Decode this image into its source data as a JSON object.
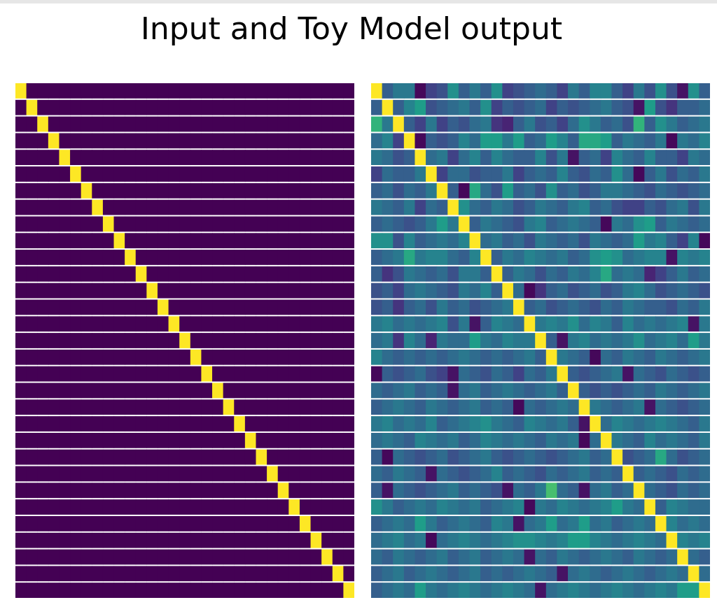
{
  "figure": {
    "title": "Input and Toy Model output"
  },
  "chart_data": [
    {
      "type": "heatmap",
      "title": "",
      "colormap": "viridis",
      "value_range": [
        0,
        1
      ],
      "rows": 31,
      "cols": 31,
      "description_of_values": "identity matrix: 1 on the diagonal, 0 elsewhere",
      "diagonal_value": 1,
      "off_diagonal_value": 0
    },
    {
      "type": "heatmap",
      "title": "",
      "colormap": "viridis",
      "value_range": [
        0,
        1
      ],
      "rows": 31,
      "cols": 31,
      "diagonal_value": 1,
      "off_diagonal_values": [
        [
          0.2,
          0.3,
          0.4,
          0.4,
          0.02,
          0.2,
          0.25,
          0.5,
          0.3,
          0.4,
          0.3,
          0.5,
          0.2,
          0.25,
          0.3,
          0.35,
          0.3,
          0.2,
          0.4,
          0.3,
          0.45,
          0.45,
          0.3,
          0.2,
          0.4,
          0.25,
          0.5,
          0.25,
          0.05,
          0.5,
          0.3
        ],
        [
          0.3,
          0.2,
          0.3,
          0.45,
          0.55,
          0.25,
          0.3,
          0.35,
          0.4,
          0.3,
          0.5,
          0.2,
          0.3,
          0.25,
          0.3,
          0.35,
          0.2,
          0.3,
          0.25,
          0.3,
          0.35,
          0.4,
          0.3,
          0.25,
          0.05,
          0.55,
          0.25,
          0.15,
          0.3,
          0.3,
          0.35
        ],
        [
          0.65,
          0.4,
          0.35,
          0.3,
          0.2,
          0.4,
          0.2,
          0.3,
          0.25,
          0.35,
          0.4,
          0.15,
          0.1,
          0.3,
          0.4,
          0.25,
          0.3,
          0.2,
          0.35,
          0.5,
          0.4,
          0.3,
          0.35,
          0.25,
          0.65,
          0.3,
          0.5,
          0.4,
          0.3,
          0.35,
          0.4
        ],
        [
          0.35,
          0.45,
          0.2,
          0.4,
          0.02,
          0.3,
          0.25,
          0.3,
          0.45,
          0.35,
          0.55,
          0.55,
          0.4,
          0.55,
          0.3,
          0.35,
          0.55,
          0.45,
          0.3,
          0.6,
          0.6,
          0.55,
          0.3,
          0.4,
          0.35,
          0.3,
          0.4,
          0.02,
          0.4,
          0.35,
          0.45
        ],
        [
          0.4,
          0.35,
          0.25,
          0.3,
          0.25,
          0.35,
          0.4,
          0.2,
          0.35,
          0.45,
          0.3,
          0.45,
          0.35,
          0.3,
          0.3,
          0.45,
          0.25,
          0.4,
          0.05,
          0.3,
          0.35,
          0.2,
          0.45,
          0.35,
          0.3,
          0.45,
          0.3,
          0.3,
          0.2,
          0.4,
          0.35
        ],
        [
          0.2,
          0.35,
          0.3,
          0.3,
          0.4,
          0.45,
          0.2,
          0.35,
          0.35,
          0.25,
          0.3,
          0.3,
          0.4,
          0.2,
          0.3,
          0.35,
          0.3,
          0.45,
          0.3,
          0.25,
          0.35,
          0.3,
          0.5,
          0.35,
          0.02,
          0.3,
          0.4,
          0.25,
          0.35,
          0.3,
          0.4
        ],
        [
          0.3,
          0.35,
          0.25,
          0.35,
          0.3,
          0.4,
          0.2,
          0.3,
          0.02,
          0.6,
          0.35,
          0.25,
          0.55,
          0.3,
          0.35,
          0.25,
          0.5,
          0.3,
          0.35,
          0.25,
          0.3,
          0.4,
          0.4,
          0.35,
          0.3,
          0.25,
          0.35,
          0.3,
          0.25,
          0.3,
          0.35
        ],
        [
          0.4,
          0.35,
          0.3,
          0.4,
          0.2,
          0.35,
          0.3,
          0.02,
          0.5,
          0.35,
          0.3,
          0.4,
          0.35,
          0.25,
          0.3,
          0.4,
          0.35,
          0.3,
          0.4,
          0.45,
          0.3,
          0.35,
          0.25,
          0.2,
          0.2,
          0.3,
          0.25,
          0.35,
          0.4,
          0.25,
          0.4
        ],
        [
          0.3,
          0.35,
          0.3,
          0.25,
          0.3,
          0.4,
          0.55,
          0.4,
          0.35,
          0.3,
          0.4,
          0.35,
          0.3,
          0.25,
          0.4,
          0.45,
          0.3,
          0.35,
          0.4,
          0.35,
          0.3,
          0.02,
          0.4,
          0.35,
          0.5,
          0.55,
          0.3,
          0.4,
          0.35,
          0.3,
          0.35
        ],
        [
          0.5,
          0.5,
          0.25,
          0.45,
          0.3,
          0.35,
          0.4,
          0.35,
          0.45,
          0.3,
          0.35,
          0.4,
          0.3,
          0.35,
          0.25,
          0.4,
          0.35,
          0.3,
          0.35,
          0.25,
          0.4,
          0.35,
          0.3,
          0.35,
          0.55,
          0.4,
          0.45,
          0.3,
          0.2,
          0.45,
          0.02
        ],
        [
          0.3,
          0.35,
          0.4,
          0.6,
          0.4,
          0.45,
          0.45,
          0.35,
          0.3,
          0.45,
          0.4,
          0.3,
          0.4,
          0.35,
          0.45,
          0.4,
          0.35,
          0.4,
          0.3,
          0.35,
          0.5,
          0.55,
          0.5,
          0.35,
          0.4,
          0.45,
          0.45,
          0.05,
          0.45,
          0.4,
          0.45
        ],
        [
          0.3,
          0.15,
          0.25,
          0.4,
          0.35,
          0.3,
          0.35,
          0.25,
          0.4,
          0.4,
          0.3,
          0.35,
          0.3,
          0.4,
          0.35,
          0.25,
          0.35,
          0.3,
          0.4,
          0.35,
          0.45,
          0.6,
          0.35,
          0.4,
          0.35,
          0.1,
          0.2,
          0.3,
          0.4,
          0.3,
          0.35
        ],
        [
          0.25,
          0.3,
          0.2,
          0.35,
          0.4,
          0.35,
          0.3,
          0.25,
          0.4,
          0.35,
          0.45,
          0.3,
          0.35,
          0.35,
          0.02,
          0.15,
          0.3,
          0.35,
          0.25,
          0.3,
          0.35,
          0.25,
          0.3,
          0.4,
          0.45,
          0.35,
          0.25,
          0.3,
          0.35,
          0.3,
          0.25
        ],
        [
          0.25,
          0.3,
          0.15,
          0.3,
          0.35,
          0.25,
          0.4,
          0.3,
          0.35,
          0.25,
          0.3,
          0.35,
          0.4,
          0.2,
          0.3,
          0.35,
          0.25,
          0.3,
          0.35,
          0.3,
          0.25,
          0.35,
          0.3,
          0.4,
          0.35,
          0.3,
          0.3,
          0.25,
          0.35,
          0.3,
          0.4
        ],
        [
          0.4,
          0.45,
          0.35,
          0.4,
          0.35,
          0.4,
          0.45,
          0.25,
          0.4,
          0.05,
          0.3,
          0.45,
          0.4,
          0.35,
          0.35,
          0.4,
          0.45,
          0.4,
          0.5,
          0.35,
          0.45,
          0.4,
          0.3,
          0.45,
          0.35,
          0.4,
          0.35,
          0.4,
          0.45,
          0.05,
          0.4
        ],
        [
          0.35,
          0.4,
          0.15,
          0.45,
          0.35,
          0.1,
          0.4,
          0.35,
          0.35,
          0.55,
          0.4,
          0.35,
          0.45,
          0.4,
          0.4,
          0.5,
          0.3,
          0.05,
          0.4,
          0.45,
          0.35,
          0.4,
          0.35,
          0.4,
          0.5,
          0.35,
          0.4,
          0.45,
          0.35,
          0.55,
          0.4
        ],
        [
          0.45,
          0.35,
          0.3,
          0.35,
          0.3,
          0.35,
          0.3,
          0.35,
          0.4,
          0.35,
          0.3,
          0.35,
          0.3,
          0.35,
          0.4,
          0.3,
          0.35,
          0.4,
          0.35,
          0.3,
          0.02,
          0.35,
          0.3,
          0.4,
          0.35,
          0.3,
          0.4,
          0.35,
          0.3,
          0.35,
          0.4
        ],
        [
          0.02,
          0.3,
          0.25,
          0.3,
          0.35,
          0.25,
          0.2,
          0.05,
          0.35,
          0.3,
          0.25,
          0.35,
          0.3,
          0.2,
          0.35,
          0.3,
          0.4,
          0.35,
          0.3,
          0.25,
          0.3,
          0.35,
          0.4,
          0.05,
          0.35,
          0.3,
          0.25,
          0.35,
          0.3,
          0.25,
          0.3
        ],
        [
          0.35,
          0.3,
          0.35,
          0.4,
          0.3,
          0.35,
          0.3,
          0.05,
          0.35,
          0.4,
          0.3,
          0.35,
          0.4,
          0.35,
          0.3,
          0.35,
          0.4,
          0.3,
          0.35,
          0.3,
          0.25,
          0.3,
          0.25,
          0.3,
          0.35,
          0.3,
          0.4,
          0.35,
          0.3,
          0.35,
          0.4
        ],
        [
          0.3,
          0.35,
          0.4,
          0.35,
          0.3,
          0.4,
          0.35,
          0.3,
          0.35,
          0.4,
          0.3,
          0.35,
          0.3,
          0.02,
          0.35,
          0.3,
          0.35,
          0.4,
          0.35,
          0.3,
          0.4,
          0.35,
          0.3,
          0.35,
          0.4,
          0.05,
          0.35,
          0.3,
          0.25,
          0.3,
          0.35
        ],
        [
          0.4,
          0.45,
          0.35,
          0.4,
          0.35,
          0.45,
          0.3,
          0.35,
          0.4,
          0.45,
          0.5,
          0.4,
          0.35,
          0.3,
          0.45,
          0.4,
          0.35,
          0.4,
          0.3,
          0.05,
          0.4,
          0.35,
          0.45,
          0.4,
          0.35,
          0.4,
          0.45,
          0.4,
          0.35,
          0.3,
          0.4
        ],
        [
          0.35,
          0.4,
          0.35,
          0.3,
          0.45,
          0.4,
          0.35,
          0.4,
          0.3,
          0.35,
          0.45,
          0.4,
          0.35,
          0.4,
          0.35,
          0.3,
          0.4,
          0.35,
          0.4,
          0.02,
          0.35,
          0.3,
          0.4,
          0.35,
          0.3,
          0.45,
          0.35,
          0.4,
          0.35,
          0.3,
          0.4
        ],
        [
          0.3,
          0.02,
          0.35,
          0.3,
          0.25,
          0.3,
          0.35,
          0.25,
          0.3,
          0.35,
          0.4,
          0.3,
          0.25,
          0.3,
          0.35,
          0.3,
          0.25,
          0.3,
          0.35,
          0.4,
          0.3,
          0.35,
          0.3,
          0.25,
          0.3,
          0.35,
          0.6,
          0.35,
          0.25,
          0.3,
          0.35
        ],
        [
          0.35,
          0.3,
          0.4,
          0.35,
          0.3,
          0.05,
          0.35,
          0.3,
          0.25,
          0.3,
          0.35,
          0.45,
          0.3,
          0.35,
          0.3,
          0.25,
          0.35,
          0.3,
          0.35,
          0.4,
          0.3,
          0.35,
          0.3,
          0.35,
          0.3,
          0.35,
          0.3,
          0.25,
          0.35,
          0.3,
          0.35
        ],
        [
          0.3,
          0.05,
          0.35,
          0.3,
          0.25,
          0.3,
          0.35,
          0.4,
          0.3,
          0.35,
          0.3,
          0.25,
          0.05,
          0.35,
          0.3,
          0.4,
          0.7,
          0.35,
          0.3,
          0.05,
          0.35,
          0.4,
          0.3,
          0.35,
          0.3,
          0.35,
          0.3,
          0.25,
          0.35,
          0.3,
          0.35
        ],
        [
          0.5,
          0.4,
          0.3,
          0.35,
          0.4,
          0.35,
          0.45,
          0.4,
          0.35,
          0.4,
          0.3,
          0.35,
          0.4,
          0.45,
          0.02,
          0.4,
          0.35,
          0.45,
          0.4,
          0.35,
          0.4,
          0.45,
          0.55,
          0.4,
          0.35,
          0.4,
          0.3,
          0.45,
          0.4,
          0.35,
          0.35
        ],
        [
          0.3,
          0.35,
          0.4,
          0.35,
          0.55,
          0.4,
          0.3,
          0.35,
          0.4,
          0.35,
          0.3,
          0.45,
          0.4,
          0.05,
          0.35,
          0.4,
          0.55,
          0.35,
          0.4,
          0.55,
          0.35,
          0.4,
          0.3,
          0.35,
          0.4,
          0.35,
          0.4,
          0.45,
          0.35,
          0.4,
          0.35
        ],
        [
          0.35,
          0.4,
          0.45,
          0.35,
          0.4,
          0.02,
          0.35,
          0.4,
          0.45,
          0.4,
          0.35,
          0.4,
          0.45,
          0.5,
          0.5,
          0.45,
          0.4,
          0.45,
          0.55,
          0.55,
          0.45,
          0.4,
          0.35,
          0.4,
          0.45,
          0.4,
          0.35,
          0.4,
          0.45,
          0.4,
          0.45
        ],
        [
          0.35,
          0.3,
          0.4,
          0.35,
          0.3,
          0.35,
          0.4,
          0.3,
          0.35,
          0.4,
          0.3,
          0.35,
          0.4,
          0.35,
          0.05,
          0.35,
          0.3,
          0.4,
          0.35,
          0.3,
          0.35,
          0.4,
          0.35,
          0.3,
          0.4,
          0.35,
          0.3,
          0.35,
          0.4,
          0.35,
          0.3
        ],
        [
          0.3,
          0.35,
          0.4,
          0.3,
          0.35,
          0.4,
          0.35,
          0.3,
          0.35,
          0.4,
          0.3,
          0.35,
          0.3,
          0.35,
          0.4,
          0.35,
          0.3,
          0.05,
          0.35,
          0.4,
          0.35,
          0.3,
          0.35,
          0.4,
          0.35,
          0.3,
          0.35,
          0.4,
          0.35,
          0.3,
          0.35
        ],
        [
          0.3,
          0.35,
          0.4,
          0.35,
          0.55,
          0.4,
          0.35,
          0.4,
          0.45,
          0.4,
          0.35,
          0.4,
          0.45,
          0.4,
          0.35,
          0.05,
          0.35,
          0.4,
          0.45,
          0.4,
          0.35,
          0.4,
          0.45,
          0.4,
          0.35,
          0.4,
          0.45,
          0.4,
          0.55,
          0.55,
          0.35
        ]
      ]
    }
  ]
}
